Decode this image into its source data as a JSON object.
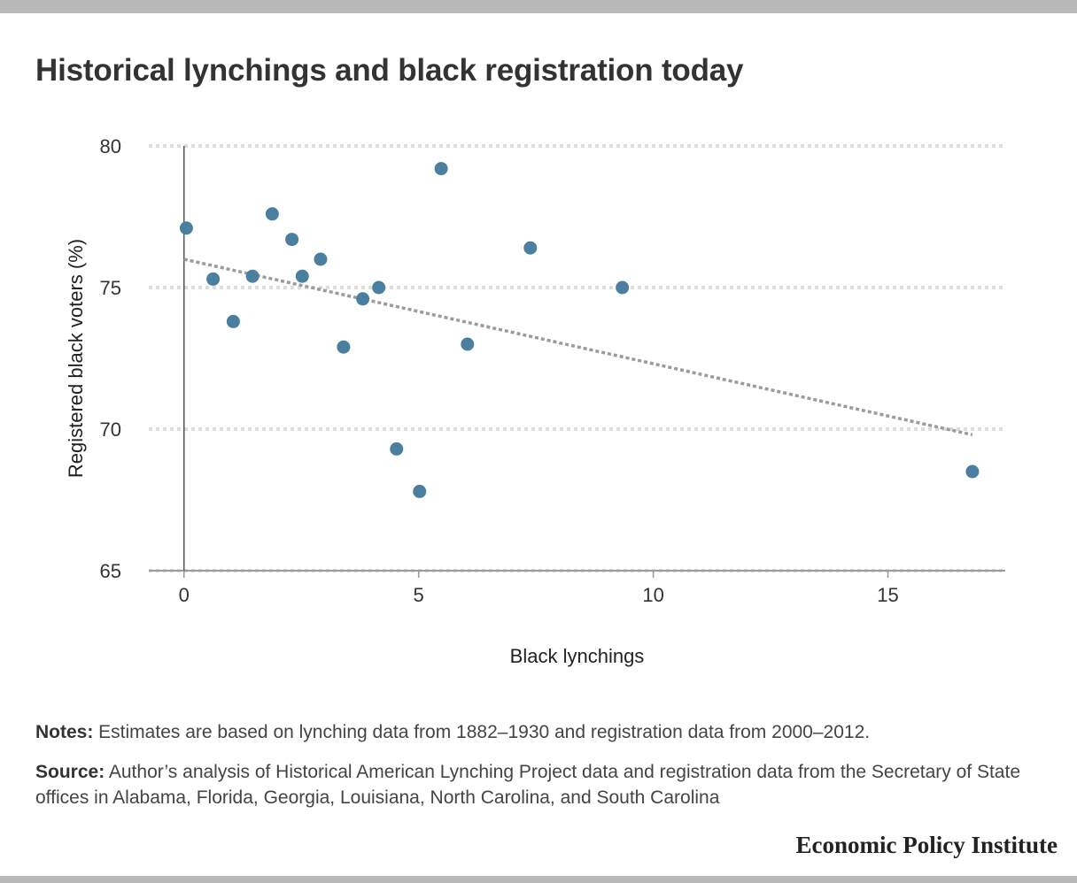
{
  "title": "Historical lynchings and black registration today",
  "notes": {
    "notes_label": "Notes:",
    "notes_text": " Estimates are based on lynching data from 1882–1930 and registration data from 2000–2012.",
    "source_label": "Source:",
    "source_text": " Author’s analysis of Historical American Lynching Project data and registration data from the Secretary of State offices in Alabama, Florida, Georgia, Louisiana, North Carolina, and South Carolina"
  },
  "brand": "Economic Policy Institute",
  "colors": {
    "points": "#4a7fa0",
    "trend": "#9b9b9b",
    "grid": "#dcdcdc",
    "axis": "#555555"
  },
  "chart_data": {
    "type": "scatter",
    "title": "Historical lynchings and black registration today",
    "xlabel": "Black lynchings",
    "ylabel": "Registered black voters (%)",
    "xlim": [
      -0.75,
      17.5
    ],
    "ylim": [
      65,
      80
    ],
    "xticks": [
      0,
      5,
      10,
      15
    ],
    "yticks": [
      65,
      70,
      75,
      80
    ],
    "grid": "horizontal dotted",
    "legend": "none",
    "points": [
      {
        "x": 0.05,
        "y": 77.1
      },
      {
        "x": 0.62,
        "y": 75.3
      },
      {
        "x": 1.05,
        "y": 73.8
      },
      {
        "x": 1.46,
        "y": 75.4
      },
      {
        "x": 1.88,
        "y": 77.6
      },
      {
        "x": 2.3,
        "y": 76.7
      },
      {
        "x": 2.52,
        "y": 75.4
      },
      {
        "x": 2.91,
        "y": 76.0
      },
      {
        "x": 3.4,
        "y": 72.9
      },
      {
        "x": 3.81,
        "y": 74.6
      },
      {
        "x": 4.15,
        "y": 75.0
      },
      {
        "x": 4.53,
        "y": 69.3
      },
      {
        "x": 5.02,
        "y": 67.8
      },
      {
        "x": 5.48,
        "y": 79.2
      },
      {
        "x": 6.04,
        "y": 73.0
      },
      {
        "x": 7.38,
        "y": 76.4
      },
      {
        "x": 9.34,
        "y": 75.0
      },
      {
        "x": 16.8,
        "y": 68.5
      }
    ],
    "trendline": {
      "x": [
        0,
        16.8
      ],
      "y": [
        76.0,
        69.8
      ]
    }
  }
}
